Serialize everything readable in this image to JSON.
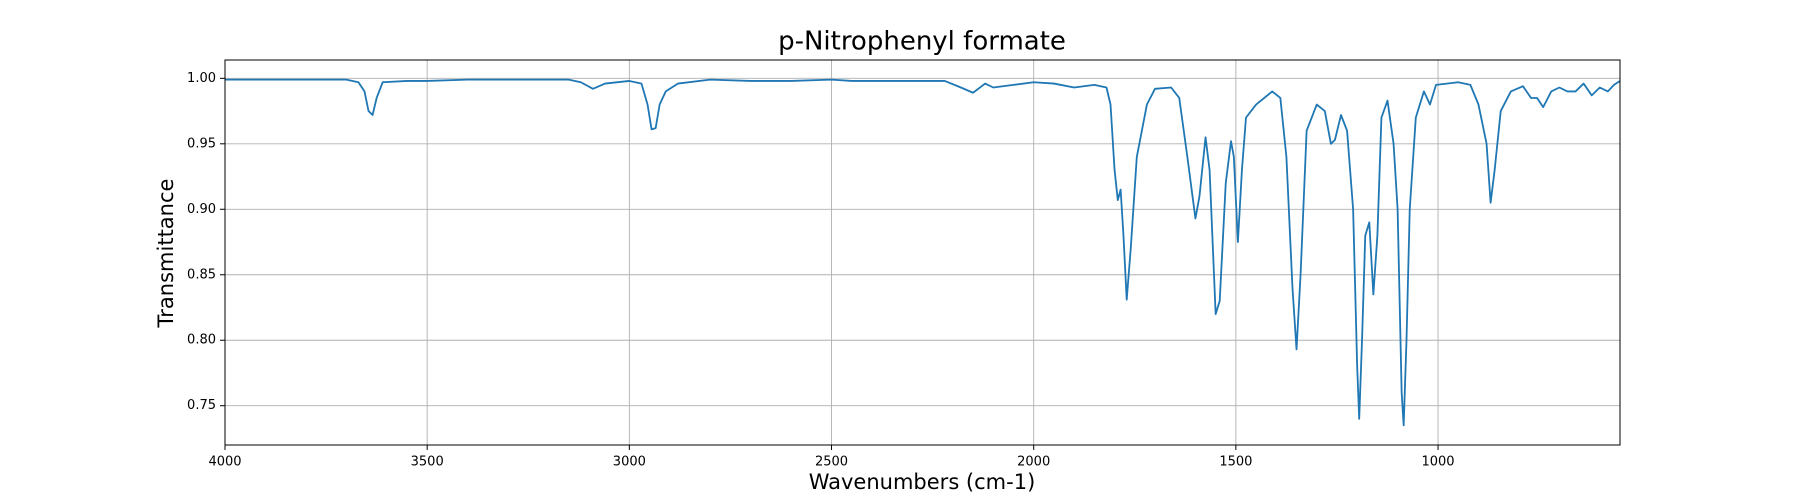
{
  "chart_data": {
    "type": "line",
    "title": "p-Nitrophenyl formate",
    "x_label": "Wavenumbers (cm-1)",
    "y_label": "Transmittance",
    "color": "#1f77b4",
    "grid": true,
    "xlim": [
      4000,
      550
    ],
    "ylim": [
      0.72,
      1.014
    ],
    "xticks": [
      4000,
      3500,
      3000,
      2500,
      2000,
      1500,
      1000
    ],
    "yticks": [
      0.75,
      {
        "value": 0.8,
        "label": "0.80"
      },
      0.85,
      {
        "value": 0.9,
        "label": "0.90"
      },
      0.95,
      {
        "value": 1,
        "label": "1.00"
      }
    ],
    "x": [
      4000,
      3900,
      3800,
      3700,
      3670,
      3655,
      3645,
      3635,
      3625,
      3610,
      3550,
      3500,
      3400,
      3300,
      3200,
      3150,
      3120,
      3090,
      3060,
      3000,
      2970,
      2955,
      2945,
      2935,
      2925,
      2910,
      2880,
      2800,
      2700,
      2600,
      2500,
      2450,
      2400,
      2300,
      2220,
      2180,
      2150,
      2120,
      2100,
      2050,
      2000,
      1950,
      1900,
      1850,
      1820,
      1810,
      1800,
      1792,
      1785,
      1778,
      1770,
      1760,
      1745,
      1720,
      1700,
      1660,
      1640,
      1620,
      1600,
      1590,
      1575,
      1565,
      1550,
      1540,
      1525,
      1512,
      1505,
      1495,
      1485,
      1475,
      1450,
      1410,
      1390,
      1375,
      1360,
      1350,
      1340,
      1325,
      1300,
      1280,
      1265,
      1255,
      1240,
      1225,
      1210,
      1200,
      1195,
      1188,
      1180,
      1170,
      1160,
      1150,
      1140,
      1125,
      1110,
      1100,
      1090,
      1085,
      1078,
      1070,
      1055,
      1035,
      1020,
      1005,
      950,
      920,
      900,
      880,
      870,
      860,
      845,
      820,
      790,
      770,
      755,
      740,
      720,
      700,
      680,
      660,
      640,
      620,
      600,
      580,
      565,
      550
    ],
    "values": [
      0.999,
      0.999,
      0.999,
      0.999,
      0.997,
      0.99,
      0.975,
      0.972,
      0.985,
      0.997,
      0.998,
      0.998,
      0.999,
      0.999,
      0.999,
      0.999,
      0.997,
      0.992,
      0.996,
      0.998,
      0.996,
      0.98,
      0.961,
      0.962,
      0.98,
      0.99,
      0.996,
      0.999,
      0.998,
      0.998,
      0.999,
      0.998,
      0.998,
      0.998,
      0.998,
      0.993,
      0.989,
      0.996,
      0.993,
      0.995,
      0.997,
      0.996,
      0.993,
      0.995,
      0.993,
      0.98,
      0.93,
      0.907,
      0.915,
      0.88,
      0.831,
      0.87,
      0.94,
      0.98,
      0.992,
      0.993,
      0.985,
      0.94,
      0.893,
      0.91,
      0.955,
      0.93,
      0.82,
      0.83,
      0.92,
      0.952,
      0.94,
      0.875,
      0.93,
      0.97,
      0.98,
      0.99,
      0.985,
      0.94,
      0.84,
      0.793,
      0.85,
      0.96,
      0.98,
      0.975,
      0.95,
      0.953,
      0.972,
      0.96,
      0.9,
      0.78,
      0.74,
      0.8,
      0.88,
      0.89,
      0.835,
      0.88,
      0.97,
      0.983,
      0.95,
      0.9,
      0.76,
      0.735,
      0.8,
      0.9,
      0.97,
      0.99,
      0.98,
      0.995,
      0.997,
      0.995,
      0.98,
      0.95,
      0.905,
      0.93,
      0.975,
      0.99,
      0.994,
      0.985,
      0.985,
      0.978,
      0.99,
      0.993,
      0.99,
      0.99,
      0.996,
      0.987,
      0.993,
      0.99,
      0.995,
      0.998
    ]
  }
}
